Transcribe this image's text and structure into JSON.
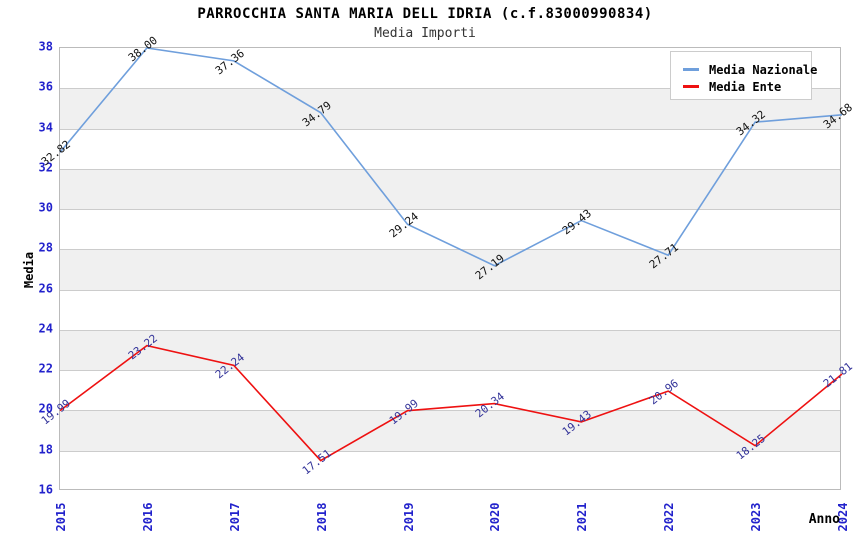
{
  "header": {
    "title": "PARROCCHIA SANTA MARIA DELL IDRIA (c.f.83000990834)",
    "subtitle": "Media Importi"
  },
  "chart_data": {
    "type": "line",
    "x": [
      "2015",
      "2016",
      "2017",
      "2018",
      "2019",
      "2020",
      "2021",
      "2022",
      "2023",
      "2024"
    ],
    "series": [
      {
        "name": "Media Nazionale",
        "color": "#6f9fdc",
        "label_color": "#111111",
        "values": [
          32.82,
          38.0,
          37.36,
          34.79,
          29.24,
          27.19,
          29.43,
          27.71,
          34.32,
          34.68
        ]
      },
      {
        "name": "Media Ente",
        "color": "#ee1111",
        "label_color": "#333399",
        "values": [
          19.99,
          23.22,
          22.24,
          17.51,
          19.99,
          20.34,
          19.43,
          20.96,
          18.25,
          21.81
        ]
      }
    ],
    "xlabel": "Anno",
    "ylabel": "Media",
    "ylim": [
      16,
      38
    ],
    "ytick_step": 2,
    "yticks": [
      16,
      18,
      20,
      22,
      24,
      26,
      28,
      30,
      32,
      34,
      36,
      38
    ],
    "grid": "horizontal-bands",
    "legend_position": "top-right",
    "colors": {
      "tick_label": "#2222cc",
      "band": "#f0f0f0",
      "gridline": "#cccccc",
      "plot_border": "#bbbbbb"
    }
  }
}
